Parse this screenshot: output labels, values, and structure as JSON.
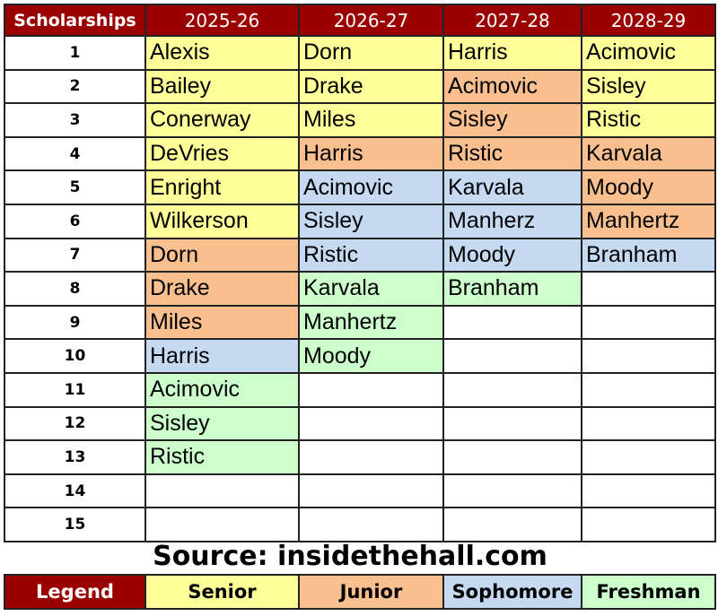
{
  "colors": {
    "header": "#9b0000",
    "senior": "#ffff99",
    "junior": "#f9bf8f",
    "sophomore": "#c5d9f1",
    "freshman": "#ccffcc"
  },
  "header": {
    "first": "Scholarships",
    "years": [
      "2025-26",
      "2026-27",
      "2027-28",
      "2028-29"
    ]
  },
  "row_numbers": [
    "1",
    "2",
    "3",
    "4",
    "5",
    "6",
    "7",
    "8",
    "9",
    "10",
    "11",
    "12",
    "13",
    "14",
    "15"
  ],
  "columns": [
    {
      "players": [
        {
          "name": "Alexis",
          "class": "senior"
        },
        {
          "name": "Bailey",
          "class": "senior"
        },
        {
          "name": "Conerway",
          "class": "senior"
        },
        {
          "name": "DeVries",
          "class": "senior"
        },
        {
          "name": "Enright",
          "class": "senior"
        },
        {
          "name": "Wilkerson",
          "class": "senior"
        },
        {
          "name": "Dorn",
          "class": "junior"
        },
        {
          "name": "Drake",
          "class": "junior"
        },
        {
          "name": "Miles",
          "class": "junior"
        },
        {
          "name": "Harris",
          "class": "sophomore"
        },
        {
          "name": "Acimovic",
          "class": "freshman"
        },
        {
          "name": "Sisley",
          "class": "freshman"
        },
        {
          "name": "Ristic",
          "class": "freshman"
        }
      ]
    },
    {
      "players": [
        {
          "name": "Dorn",
          "class": "senior"
        },
        {
          "name": "Drake",
          "class": "senior"
        },
        {
          "name": "Miles",
          "class": "senior"
        },
        {
          "name": "Harris",
          "class": "junior"
        },
        {
          "name": "Acimovic",
          "class": "sophomore"
        },
        {
          "name": "Sisley",
          "class": "sophomore"
        },
        {
          "name": "Ristic",
          "class": "sophomore"
        },
        {
          "name": "Karvala",
          "class": "freshman"
        },
        {
          "name": "Manhertz",
          "class": "freshman"
        },
        {
          "name": "Moody",
          "class": "freshman"
        }
      ]
    },
    {
      "players": [
        {
          "name": "Harris",
          "class": "senior"
        },
        {
          "name": "Acimovic",
          "class": "junior"
        },
        {
          "name": "Sisley",
          "class": "junior"
        },
        {
          "name": "Ristic",
          "class": "junior"
        },
        {
          "name": "Karvala",
          "class": "sophomore"
        },
        {
          "name": "Manherz",
          "class": "sophomore"
        },
        {
          "name": "Moody",
          "class": "sophomore"
        },
        {
          "name": "Branham",
          "class": "freshman"
        }
      ]
    },
    {
      "players": [
        {
          "name": "Acimovic",
          "class": "senior"
        },
        {
          "name": "Sisley",
          "class": "senior"
        },
        {
          "name": "Ristic",
          "class": "senior"
        },
        {
          "name": "Karvala",
          "class": "junior"
        },
        {
          "name": "Moody",
          "class": "junior"
        },
        {
          "name": "Manhertz",
          "class": "junior"
        },
        {
          "name": "Branham",
          "class": "sophomore"
        }
      ]
    }
  ],
  "source": "Source: insidethehall.com",
  "legend": [
    {
      "label": "Legend",
      "class": "header"
    },
    {
      "label": "Senior",
      "class": "senior"
    },
    {
      "label": "Junior",
      "class": "junior"
    },
    {
      "label": "Sophomore",
      "class": "sophomore"
    },
    {
      "label": "Freshman",
      "class": "freshman"
    }
  ]
}
